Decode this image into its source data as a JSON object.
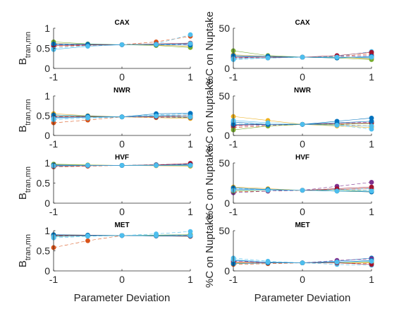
{
  "chart_data": [
    {
      "type": "line",
      "title": "CAX",
      "xlabel": "",
      "ylabel": "B_tran,mn",
      "ylim": [
        0,
        1
      ],
      "yticks": [
        0,
        0.5,
        1
      ],
      "xlim": [
        -1,
        1
      ],
      "xticks": [
        -1,
        0,
        1
      ],
      "grid": false,
      "x": [
        -1,
        -0.5,
        0,
        0.5,
        1
      ],
      "series": [
        {
          "color": "#0072BD",
          "values": [
            0.58,
            0.59,
            0.59,
            0.6,
            0.62
          ]
        },
        {
          "color": "#D95319",
          "values": [
            0.55,
            0.57,
            0.59,
            0.66,
            0.8
          ]
        },
        {
          "color": "#EDB120",
          "values": [
            0.62,
            0.6,
            0.59,
            0.58,
            0.55
          ]
        },
        {
          "color": "#7E2F8E",
          "values": [
            0.6,
            0.59,
            0.59,
            0.59,
            0.6
          ]
        },
        {
          "color": "#77AC30",
          "values": [
            0.66,
            0.61,
            0.59,
            0.57,
            0.52
          ]
        },
        {
          "color": "#4DBEEE",
          "values": [
            0.5,
            0.57,
            0.59,
            0.61,
            0.84
          ]
        },
        {
          "color": "#A2142F",
          "values": [
            0.57,
            0.58,
            0.59,
            0.61,
            0.63
          ]
        },
        {
          "color": "#0072BD",
          "values": [
            0.61,
            0.6,
            0.59,
            0.59,
            0.58
          ]
        },
        {
          "color": "#4DBEEE",
          "values": [
            0.47,
            0.55,
            0.59,
            0.6,
            0.62
          ]
        }
      ]
    },
    {
      "type": "line",
      "title": "CAX",
      "xlabel": "",
      "ylabel": "%C on Nuptake",
      "ylim": [
        0,
        50
      ],
      "yticks": [
        0,
        50
      ],
      "xlim": [
        -1,
        1
      ],
      "xticks": [
        -1,
        0,
        1
      ],
      "grid": false,
      "x": [
        -1,
        -0.5,
        0,
        0.5,
        1
      ],
      "series": [
        {
          "color": "#0072BD",
          "values": [
            15,
            14,
            14,
            14,
            13
          ]
        },
        {
          "color": "#D95319",
          "values": [
            12,
            13,
            14,
            15,
            18
          ]
        },
        {
          "color": "#EDB120",
          "values": [
            17,
            15,
            14,
            14,
            12
          ]
        },
        {
          "color": "#7E2F8E",
          "values": [
            13,
            14,
            14,
            15,
            16
          ]
        },
        {
          "color": "#77AC30",
          "values": [
            22,
            16,
            14,
            13,
            11
          ]
        },
        {
          "color": "#4DBEEE",
          "values": [
            11,
            13,
            14,
            15,
            21
          ]
        },
        {
          "color": "#A2142F",
          "values": [
            14,
            14,
            14,
            16,
            20
          ]
        },
        {
          "color": "#0072BD",
          "values": [
            16,
            15,
            14,
            13,
            15
          ]
        },
        {
          "color": "#4DBEEE",
          "values": [
            12,
            13,
            14,
            14,
            14
          ]
        }
      ]
    },
    {
      "type": "line",
      "title": "NWR",
      "xlabel": "",
      "ylabel": "B_tran,mn",
      "ylim": [
        0,
        1
      ],
      "yticks": [
        0,
        0.5,
        1
      ],
      "xlim": [
        -1,
        1
      ],
      "xticks": [
        -1,
        0,
        1
      ],
      "grid": false,
      "x": [
        -1,
        -0.5,
        0,
        0.5,
        1
      ],
      "series": [
        {
          "color": "#0072BD",
          "values": [
            0.45,
            0.46,
            0.47,
            0.5,
            0.52
          ]
        },
        {
          "color": "#D95319",
          "values": [
            0.32,
            0.39,
            0.47,
            0.49,
            0.5
          ]
        },
        {
          "color": "#EDB120",
          "values": [
            0.55,
            0.5,
            0.47,
            0.45,
            0.43
          ]
        },
        {
          "color": "#7E2F8E",
          "values": [
            0.47,
            0.47,
            0.47,
            0.46,
            0.45
          ]
        },
        {
          "color": "#77AC30",
          "values": [
            0.5,
            0.48,
            0.47,
            0.47,
            0.46
          ]
        },
        {
          "color": "#4DBEEE",
          "values": [
            0.4,
            0.44,
            0.47,
            0.52,
            0.55
          ]
        },
        {
          "color": "#A2142F",
          "values": [
            0.48,
            0.47,
            0.47,
            0.47,
            0.47
          ]
        },
        {
          "color": "#0072BD",
          "values": [
            0.52,
            0.49,
            0.47,
            0.55,
            0.56
          ]
        },
        {
          "color": "#4DBEEE",
          "values": [
            0.43,
            0.46,
            0.47,
            0.49,
            0.47
          ]
        }
      ]
    },
    {
      "type": "line",
      "title": "NWR",
      "xlabel": "",
      "ylabel": "%C on Nuptake",
      "ylim": [
        0,
        50
      ],
      "yticks": [
        0,
        50
      ],
      "xlim": [
        -1,
        1
      ],
      "xticks": [
        -1,
        0,
        1
      ],
      "grid": false,
      "x": [
        -1,
        -0.5,
        0,
        0.5,
        1
      ],
      "series": [
        {
          "color": "#0072BD",
          "values": [
            17,
            14,
            14,
            18,
            22
          ]
        },
        {
          "color": "#D95319",
          "values": [
            10,
            12,
            14,
            14,
            12
          ]
        },
        {
          "color": "#EDB120",
          "values": [
            24,
            19,
            14,
            12,
            10
          ]
        },
        {
          "color": "#7E2F8E",
          "values": [
            12,
            13,
            14,
            15,
            17
          ]
        },
        {
          "color": "#77AC30",
          "values": [
            7,
            12,
            14,
            14,
            15
          ]
        },
        {
          "color": "#4DBEEE",
          "values": [
            15,
            14,
            14,
            13,
            8
          ]
        },
        {
          "color": "#A2142F",
          "values": [
            13,
            14,
            14,
            15,
            16
          ]
        },
        {
          "color": "#0072BD",
          "values": [
            14,
            14,
            14,
            16,
            18
          ]
        },
        {
          "color": "#4DBEEE",
          "values": [
            19,
            16,
            14,
            13,
            12
          ]
        }
      ]
    },
    {
      "type": "line",
      "title": "HVF",
      "xlabel": "",
      "ylabel": "B_tran,mn",
      "ylim": [
        0,
        1
      ],
      "yticks": [
        0,
        0.5,
        1
      ],
      "xlim": [
        -1,
        1
      ],
      "xticks": [
        -1,
        0,
        1
      ],
      "grid": false,
      "x": [
        -1,
        -0.5,
        0,
        0.5,
        1
      ],
      "series": [
        {
          "color": "#0072BD",
          "values": [
            0.94,
            0.94,
            0.94,
            0.95,
            0.96
          ]
        },
        {
          "color": "#D95319",
          "values": [
            0.9,
            0.92,
            0.94,
            0.96,
            0.98
          ]
        },
        {
          "color": "#EDB120",
          "values": [
            0.96,
            0.95,
            0.94,
            0.93,
            0.92
          ]
        },
        {
          "color": "#7E2F8E",
          "values": [
            0.93,
            0.94,
            0.94,
            0.95,
            0.96
          ]
        },
        {
          "color": "#77AC30",
          "values": [
            0.97,
            0.95,
            0.94,
            0.94,
            0.93
          ]
        },
        {
          "color": "#4DBEEE",
          "values": [
            0.91,
            0.93,
            0.94,
            0.96,
            0.97
          ]
        },
        {
          "color": "#A2142F",
          "values": [
            0.92,
            0.93,
            0.94,
            0.95,
            0.99
          ]
        },
        {
          "color": "#0072BD",
          "values": [
            0.95,
            0.94,
            0.94,
            0.94,
            0.95
          ]
        },
        {
          "color": "#4DBEEE",
          "values": [
            0.93,
            0.94,
            0.94,
            0.94,
            0.94
          ]
        }
      ]
    },
    {
      "type": "line",
      "title": "HVF",
      "xlabel": "",
      "ylabel": "%C on Nuptake",
      "ylim": [
        0,
        50
      ],
      "yticks": [
        0,
        50
      ],
      "xlim": [
        -1,
        1
      ],
      "xticks": [
        -1,
        0,
        1
      ],
      "grid": false,
      "x": [
        -1,
        -0.5,
        0,
        0.5,
        1
      ],
      "series": [
        {
          "color": "#0072BD",
          "values": [
            17,
            17,
            16,
            17,
            18
          ]
        },
        {
          "color": "#D95319",
          "values": [
            14,
            15,
            16,
            17,
            18
          ]
        },
        {
          "color": "#EDB120",
          "values": [
            20,
            18,
            16,
            15,
            14
          ]
        },
        {
          "color": "#7E2F8E",
          "values": [
            13,
            15,
            16,
            21,
            26
          ]
        },
        {
          "color": "#77AC30",
          "values": [
            15,
            16,
            16,
            16,
            15
          ]
        },
        {
          "color": "#4DBEEE",
          "values": [
            18,
            17,
            16,
            16,
            16
          ]
        },
        {
          "color": "#A2142F",
          "values": [
            16,
            16,
            16,
            18,
            20
          ]
        },
        {
          "color": "#0072BD",
          "values": [
            19,
            17,
            16,
            15,
            14
          ]
        },
        {
          "color": "#4DBEEE",
          "values": [
            16,
            16,
            16,
            15,
            15
          ]
        }
      ]
    },
    {
      "type": "line",
      "title": "MET",
      "xlabel": "Parameter Deviation",
      "ylabel": "B_tran,mn",
      "ylim": [
        0,
        1
      ],
      "yticks": [
        0,
        0.5,
        1
      ],
      "xlim": [
        -1,
        1
      ],
      "xticks": [
        -1,
        0,
        1
      ],
      "grid": false,
      "x": [
        -1,
        -0.5,
        0,
        0.5,
        1
      ],
      "series": [
        {
          "color": "#0072BD",
          "values": [
            0.88,
            0.88,
            0.88,
            0.89,
            0.9
          ]
        },
        {
          "color": "#D95319",
          "values": [
            0.58,
            0.75,
            0.88,
            0.88,
            0.88
          ]
        },
        {
          "color": "#EDB120",
          "values": [
            0.9,
            0.89,
            0.88,
            0.87,
            0.86
          ]
        },
        {
          "color": "#7E2F8E",
          "values": [
            0.87,
            0.88,
            0.88,
            0.88,
            0.89
          ]
        },
        {
          "color": "#77AC30",
          "values": [
            0.86,
            0.87,
            0.88,
            0.89,
            0.9
          ]
        },
        {
          "color": "#4DBEEE",
          "values": [
            0.82,
            0.86,
            0.88,
            0.92,
            0.98
          ]
        },
        {
          "color": "#A2142F",
          "values": [
            0.89,
            0.88,
            0.88,
            0.87,
            0.86
          ]
        },
        {
          "color": "#0072BD",
          "values": [
            0.9,
            0.89,
            0.88,
            0.87,
            0.87
          ]
        },
        {
          "color": "#4DBEEE",
          "values": [
            0.85,
            0.87,
            0.88,
            0.88,
            0.88
          ]
        }
      ]
    },
    {
      "type": "line",
      "title": "MET",
      "xlabel": "Parameter Deviation",
      "ylabel": "%C on Nuptake",
      "ylim": [
        0,
        50
      ],
      "yticks": [
        0,
        50
      ],
      "xlim": [
        -1,
        1
      ],
      "xticks": [
        -1,
        0,
        1
      ],
      "grid": false,
      "x": [
        -1,
        -0.5,
        0,
        0.5,
        1
      ],
      "series": [
        {
          "color": "#0072BD",
          "values": [
            13,
            11,
            10,
            12,
            16
          ]
        },
        {
          "color": "#D95319",
          "values": [
            8,
            9,
            10,
            10,
            9
          ]
        },
        {
          "color": "#EDB120",
          "values": [
            10,
            10,
            10,
            10,
            10
          ]
        },
        {
          "color": "#7E2F8E",
          "values": [
            12,
            11,
            10,
            13,
            15
          ]
        },
        {
          "color": "#77AC30",
          "values": [
            9,
            10,
            10,
            10,
            11
          ]
        },
        {
          "color": "#4DBEEE",
          "values": [
            16,
            12,
            10,
            8,
            7
          ]
        },
        {
          "color": "#A2142F",
          "values": [
            11,
            10,
            10,
            10,
            8
          ]
        },
        {
          "color": "#0072BD",
          "values": [
            9,
            10,
            10,
            11,
            13
          ]
        },
        {
          "color": "#4DBEEE",
          "values": [
            14,
            11,
            10,
            11,
            12
          ]
        }
      ]
    }
  ]
}
